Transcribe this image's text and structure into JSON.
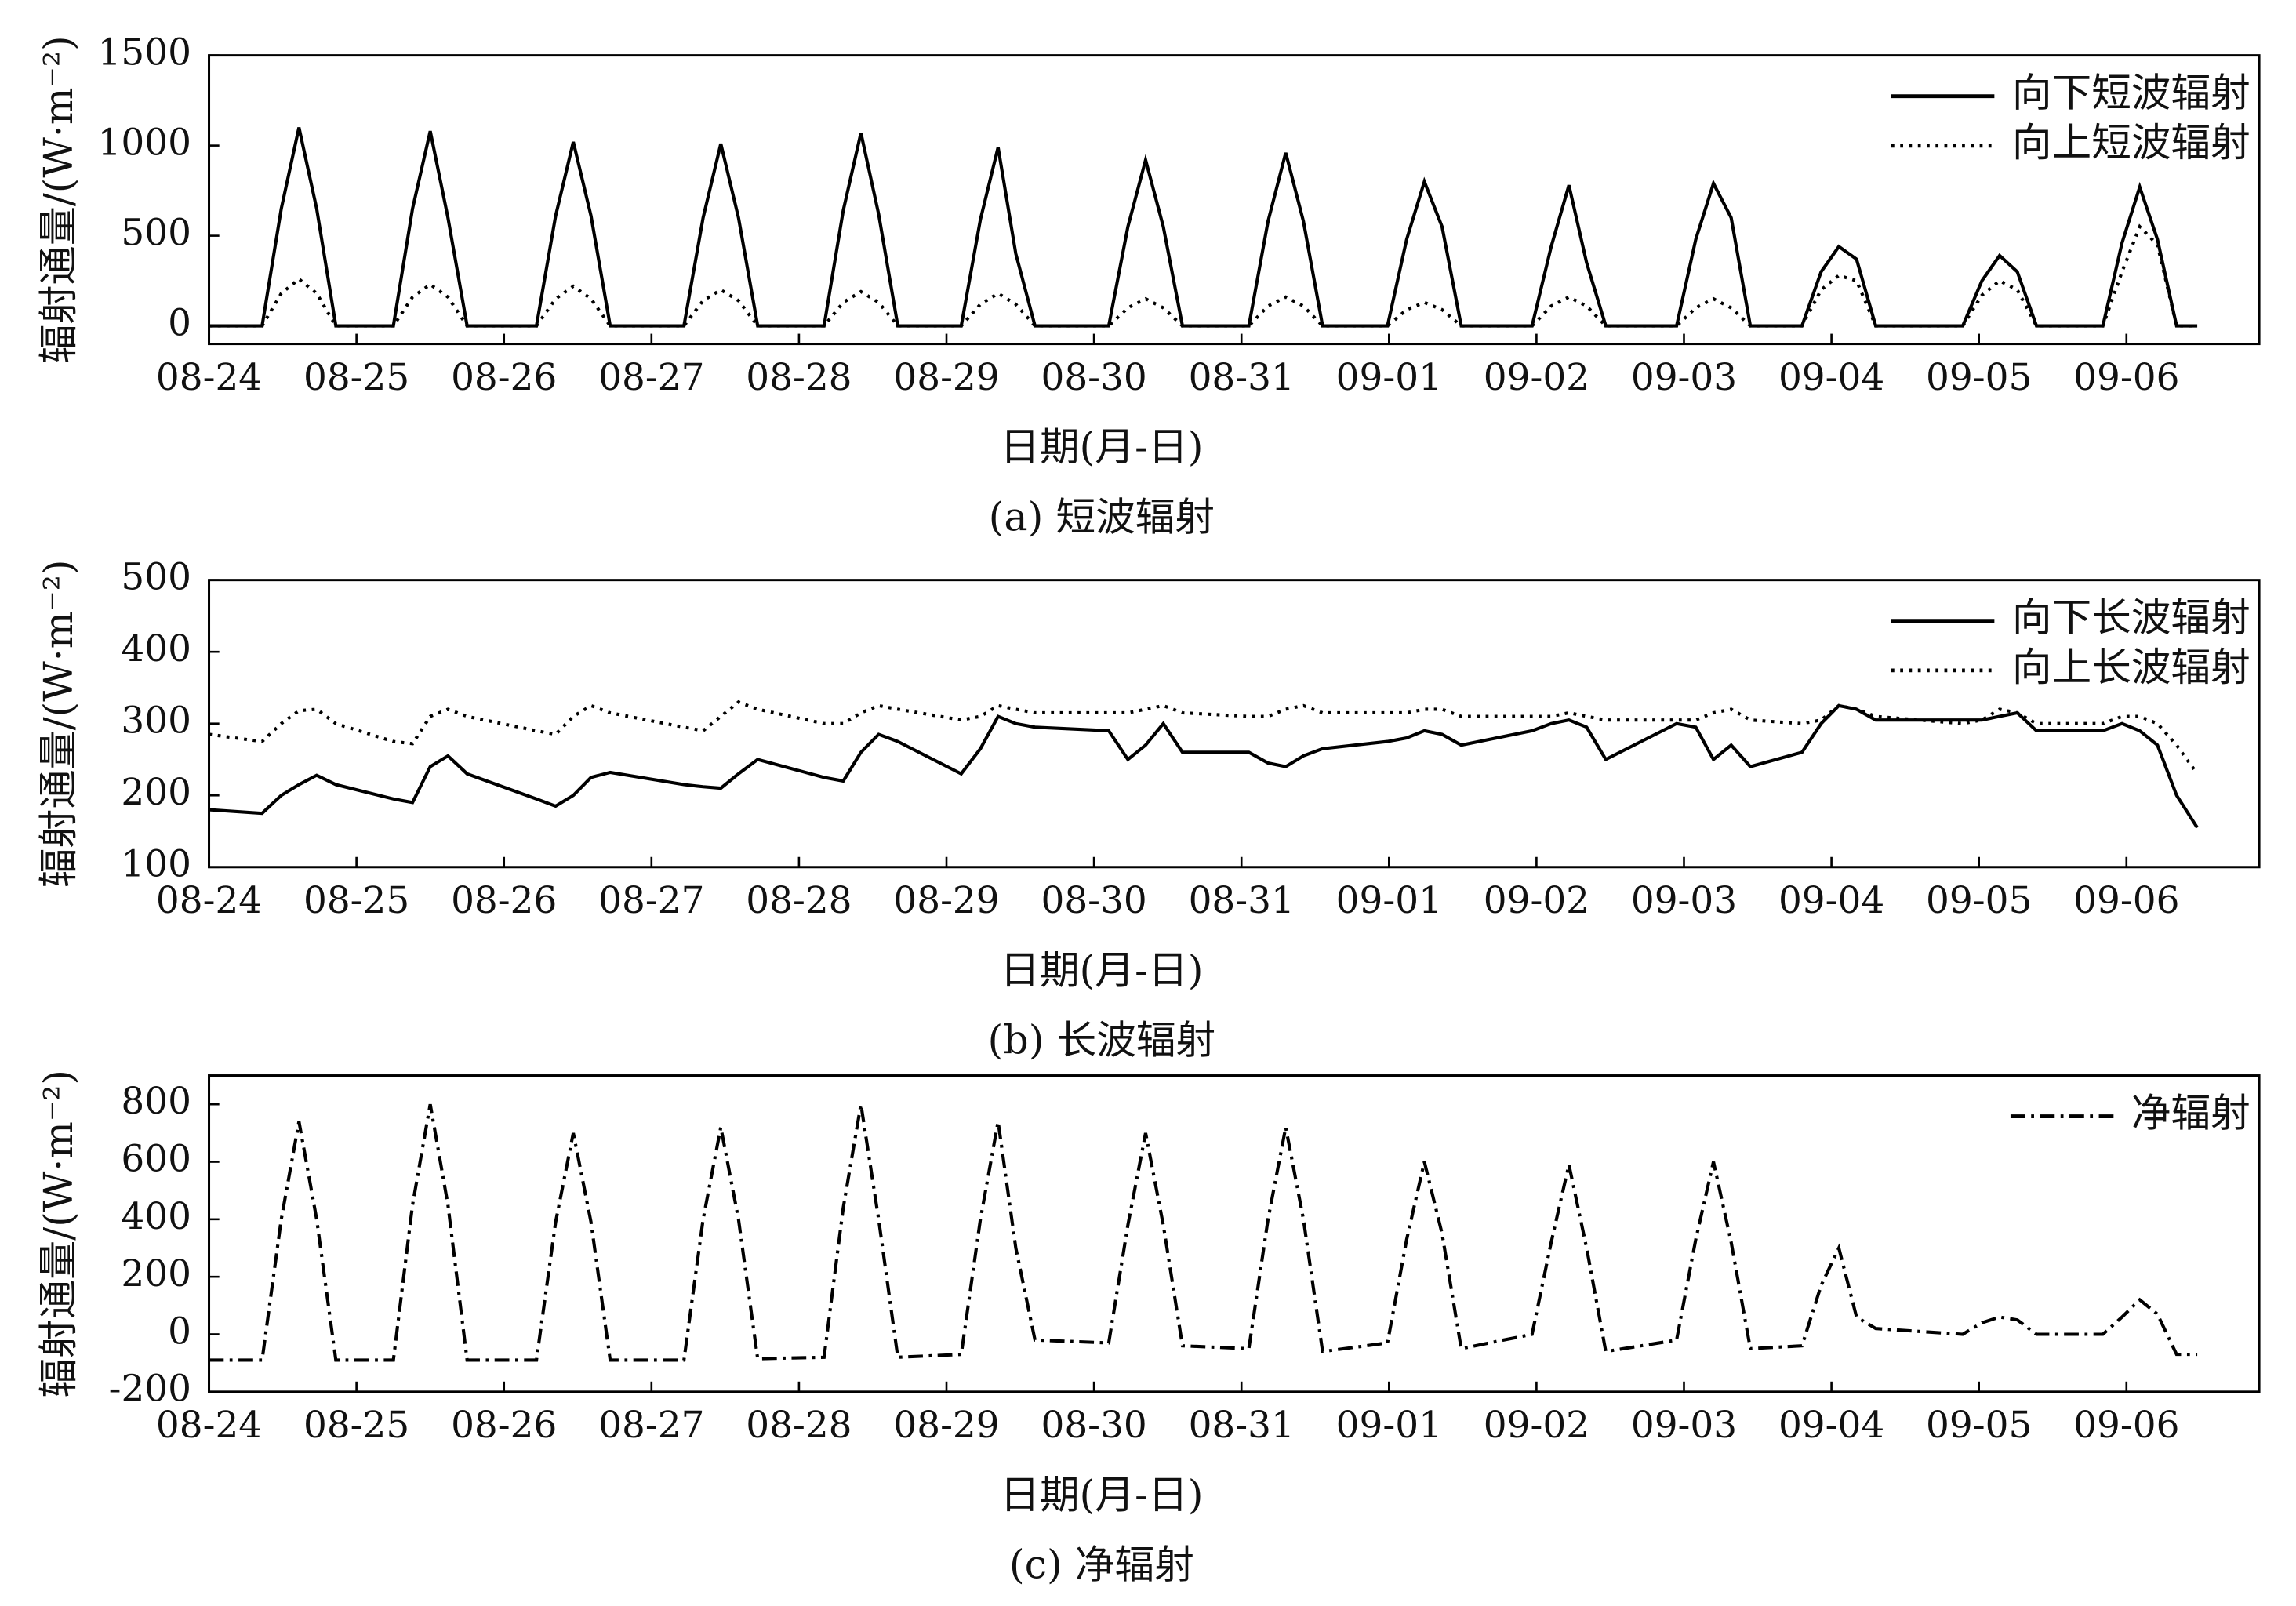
{
  "chart_data": [
    {
      "type": "line",
      "ylabel": "辐射通量/(W·m⁻²)",
      "xlabel": "日期(月-日)",
      "caption": "(a) 短波辐射",
      "legend": "upper right",
      "xlim": [
        0,
        13.9
      ],
      "ylim": [
        -100,
        1500
      ],
      "yticks": [
        0,
        500,
        1000,
        1500
      ],
      "xticks": [
        {
          "value": 0,
          "label": "08-24"
        },
        {
          "value": 1,
          "label": "08-25"
        },
        {
          "value": 2,
          "label": "08-26"
        },
        {
          "value": 3,
          "label": "08-27"
        },
        {
          "value": 4,
          "label": "08-28"
        },
        {
          "value": 5,
          "label": "08-29"
        },
        {
          "value": 6,
          "label": "08-30"
        },
        {
          "value": 7,
          "label": "08-31"
        },
        {
          "value": 8,
          "label": "09-01"
        },
        {
          "value": 9,
          "label": "09-02"
        },
        {
          "value": 10,
          "label": "09-03"
        },
        {
          "value": 11,
          "label": "09-04"
        },
        {
          "value": 12,
          "label": "09-05"
        },
        {
          "value": 13,
          "label": "09-06"
        }
      ],
      "x": [
        0,
        0.36,
        0.49,
        0.61,
        0.73,
        0.86,
        1.25,
        1.38,
        1.5,
        1.62,
        1.75,
        2.22,
        2.35,
        2.47,
        2.59,
        2.72,
        3.22,
        3.35,
        3.47,
        3.59,
        3.72,
        4.17,
        4.3,
        4.42,
        4.54,
        4.67,
        5.1,
        5.23,
        5.35,
        5.47,
        5.6,
        6.1,
        6.23,
        6.35,
        6.47,
        6.6,
        7.05,
        7.18,
        7.3,
        7.42,
        7.55,
        7.99,
        8.12,
        8.24,
        8.36,
        8.49,
        8.97,
        9.1,
        9.22,
        9.34,
        9.47,
        9.95,
        10.08,
        10.2,
        10.32,
        10.45,
        10.8,
        10.93,
        11.05,
        11.17,
        11.3,
        11.89,
        12.02,
        12.14,
        12.26,
        12.39,
        12.84,
        12.97,
        13.09,
        13.21,
        13.34,
        13.48
      ],
      "series": [
        {
          "name": "向下短波辐射",
          "color": "#000000",
          "dash": "solid",
          "values": [
            0,
            0,
            650,
            1100,
            650,
            0,
            0,
            650,
            1080,
            600,
            0,
            0,
            610,
            1020,
            610,
            0,
            0,
            600,
            1010,
            600,
            0,
            0,
            640,
            1070,
            620,
            0,
            0,
            590,
            990,
            400,
            0,
            0,
            550,
            920,
            550,
            0,
            0,
            580,
            960,
            580,
            0,
            0,
            480,
            800,
            550,
            0,
            0,
            440,
            780,
            350,
            0,
            0,
            480,
            790,
            600,
            0,
            0,
            300,
            440,
            370,
            0,
            0,
            250,
            390,
            300,
            0,
            0,
            460,
            770,
            480,
            0,
            0
          ]
        },
        {
          "name": "向上短波辐射",
          "color": "#000000",
          "dash": "dotted",
          "values": [
            0,
            0,
            180,
            260,
            180,
            0,
            0,
            160,
            230,
            160,
            0,
            0,
            150,
            220,
            150,
            0,
            0,
            140,
            200,
            140,
            0,
            0,
            130,
            190,
            130,
            0,
            0,
            120,
            180,
            120,
            0,
            0,
            100,
            150,
            100,
            0,
            0,
            110,
            160,
            110,
            0,
            0,
            90,
            130,
            90,
            0,
            0,
            110,
            160,
            110,
            0,
            0,
            100,
            150,
            100,
            0,
            0,
            200,
            280,
            250,
            0,
            0,
            170,
            250,
            200,
            0,
            0,
            300,
            550,
            450,
            0,
            0
          ]
        }
      ]
    },
    {
      "type": "line",
      "ylabel": "辐射通量/(W·m⁻²)",
      "xlabel": "日期(月-日)",
      "caption": "(b) 长波辐射",
      "legend": "upper right",
      "xlim": [
        0,
        13.9
      ],
      "ylim": [
        100,
        500
      ],
      "yticks": [
        100,
        200,
        300,
        400,
        500
      ],
      "xticks": [
        {
          "value": 0,
          "label": "08-24"
        },
        {
          "value": 1,
          "label": "08-25"
        },
        {
          "value": 2,
          "label": "08-26"
        },
        {
          "value": 3,
          "label": "08-27"
        },
        {
          "value": 4,
          "label": "08-28"
        },
        {
          "value": 5,
          "label": "08-29"
        },
        {
          "value": 6,
          "label": "08-30"
        },
        {
          "value": 7,
          "label": "08-31"
        },
        {
          "value": 8,
          "label": "09-01"
        },
        {
          "value": 9,
          "label": "09-02"
        },
        {
          "value": 10,
          "label": "09-03"
        },
        {
          "value": 11,
          "label": "09-04"
        },
        {
          "value": 12,
          "label": "09-05"
        },
        {
          "value": 13,
          "label": "09-06"
        }
      ],
      "x": [
        0,
        0.36,
        0.49,
        0.61,
        0.73,
        0.86,
        1.25,
        1.38,
        1.5,
        1.62,
        1.75,
        2.22,
        2.35,
        2.47,
        2.59,
        2.72,
        3.22,
        3.35,
        3.47,
        3.59,
        3.72,
        4.17,
        4.3,
        4.42,
        4.54,
        4.67,
        5.1,
        5.23,
        5.35,
        5.47,
        5.6,
        6.1,
        6.23,
        6.35,
        6.47,
        6.6,
        7.05,
        7.18,
        7.3,
        7.42,
        7.55,
        7.99,
        8.12,
        8.24,
        8.36,
        8.49,
        8.97,
        9.1,
        9.22,
        9.34,
        9.47,
        9.95,
        10.08,
        10.2,
        10.32,
        10.45,
        10.8,
        10.93,
        11.05,
        11.17,
        11.3,
        11.89,
        12.02,
        12.14,
        12.26,
        12.39,
        12.84,
        12.97,
        13.09,
        13.21,
        13.34,
        13.48
      ],
      "series": [
        {
          "name": "向下长波辐射",
          "color": "#000000",
          "dash": "solid",
          "values": [
            180,
            175,
            200,
            215,
            228,
            215,
            195,
            190,
            240,
            255,
            230,
            195,
            185,
            200,
            225,
            232,
            215,
            212,
            210,
            230,
            250,
            225,
            220,
            260,
            285,
            275,
            230,
            265,
            310,
            300,
            295,
            290,
            250,
            270,
            300,
            260,
            260,
            245,
            240,
            255,
            265,
            275,
            280,
            290,
            285,
            270,
            290,
            300,
            305,
            295,
            250,
            300,
            295,
            250,
            270,
            240,
            260,
            300,
            325,
            320,
            305,
            305,
            305,
            310,
            315,
            290,
            290,
            300,
            290,
            270,
            200,
            155
          ]
        },
        {
          "name": "向上长波辐射",
          "color": "#000000",
          "dash": "dotted",
          "values": [
            285,
            275,
            300,
            318,
            320,
            300,
            275,
            272,
            310,
            320,
            310,
            290,
            285,
            310,
            325,
            315,
            295,
            290,
            310,
            330,
            320,
            300,
            300,
            315,
            325,
            320,
            305,
            310,
            325,
            320,
            315,
            315,
            315,
            320,
            325,
            315,
            310,
            310,
            320,
            325,
            315,
            315,
            315,
            320,
            320,
            310,
            310,
            310,
            315,
            310,
            305,
            305,
            305,
            315,
            320,
            305,
            300,
            305,
            325,
            320,
            310,
            300,
            305,
            320,
            315,
            300,
            300,
            310,
            310,
            300,
            270,
            230
          ]
        }
      ]
    },
    {
      "type": "line",
      "ylabel": "辐射通量/(W·m⁻²)",
      "xlabel": "日期(月-日)",
      "caption": "(c) 净辐射",
      "legend": "upper right",
      "xlim": [
        0,
        13.9
      ],
      "ylim": [
        -200,
        900
      ],
      "yticks": [
        -200,
        0,
        200,
        400,
        600,
        800
      ],
      "xticks": [
        {
          "value": 0,
          "label": "08-24"
        },
        {
          "value": 1,
          "label": "08-25"
        },
        {
          "value": 2,
          "label": "08-26"
        },
        {
          "value": 3,
          "label": "08-27"
        },
        {
          "value": 4,
          "label": "08-28"
        },
        {
          "value": 5,
          "label": "08-29"
        },
        {
          "value": 6,
          "label": "08-30"
        },
        {
          "value": 7,
          "label": "08-31"
        },
        {
          "value": 8,
          "label": "09-01"
        },
        {
          "value": 9,
          "label": "09-02"
        },
        {
          "value": 10,
          "label": "09-03"
        },
        {
          "value": 11,
          "label": "09-04"
        },
        {
          "value": 12,
          "label": "09-05"
        },
        {
          "value": 13,
          "label": "09-06"
        }
      ],
      "x": [
        0,
        0.36,
        0.49,
        0.61,
        0.73,
        0.86,
        1.25,
        1.38,
        1.5,
        1.62,
        1.75,
        2.22,
        2.35,
        2.47,
        2.59,
        2.72,
        3.22,
        3.35,
        3.47,
        3.59,
        3.72,
        4.17,
        4.3,
        4.42,
        4.54,
        4.67,
        5.1,
        5.23,
        5.35,
        5.47,
        5.6,
        6.1,
        6.23,
        6.35,
        6.47,
        6.6,
        7.05,
        7.18,
        7.3,
        7.42,
        7.55,
        7.99,
        8.12,
        8.24,
        8.36,
        8.49,
        8.97,
        9.1,
        9.22,
        9.34,
        9.47,
        9.95,
        10.08,
        10.2,
        10.32,
        10.45,
        10.8,
        10.93,
        11.05,
        11.17,
        11.3,
        11.89,
        12.02,
        12.14,
        12.26,
        12.39,
        12.84,
        12.97,
        13.09,
        13.21,
        13.34,
        13.48
      ],
      "series": [
        {
          "name": "净辐射",
          "color": "#000000",
          "dash": "dashdot",
          "values": [
            -90,
            -90,
            400,
            740,
            400,
            -90,
            -90,
            450,
            800,
            450,
            -90,
            -90,
            390,
            700,
            390,
            -90,
            -90,
            400,
            720,
            400,
            -85,
            -80,
            440,
            800,
            400,
            -80,
            -70,
            400,
            740,
            300,
            -20,
            -30,
            380,
            700,
            380,
            -40,
            -50,
            400,
            720,
            400,
            -60,
            -30,
            330,
            600,
            350,
            -50,
            0,
            320,
            590,
            300,
            -60,
            -20,
            330,
            600,
            320,
            -50,
            -40,
            170,
            300,
            60,
            20,
            0,
            40,
            60,
            50,
            0,
            0,
            60,
            120,
            70,
            -70,
            -70
          ]
        }
      ]
    }
  ]
}
